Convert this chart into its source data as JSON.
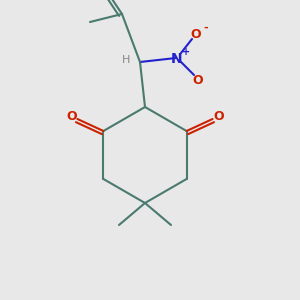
{
  "bg_color": "#e8e8e8",
  "bond_color": "#4a7a6e",
  "bond_width": 1.5,
  "O_color": "#cc2200",
  "N_color": "#2222cc",
  "H_color": "#888888",
  "fig_size": [
    3.0,
    3.0
  ],
  "dpi": 100,
  "xlim": [
    0,
    300
  ],
  "ylim": [
    0,
    300
  ]
}
